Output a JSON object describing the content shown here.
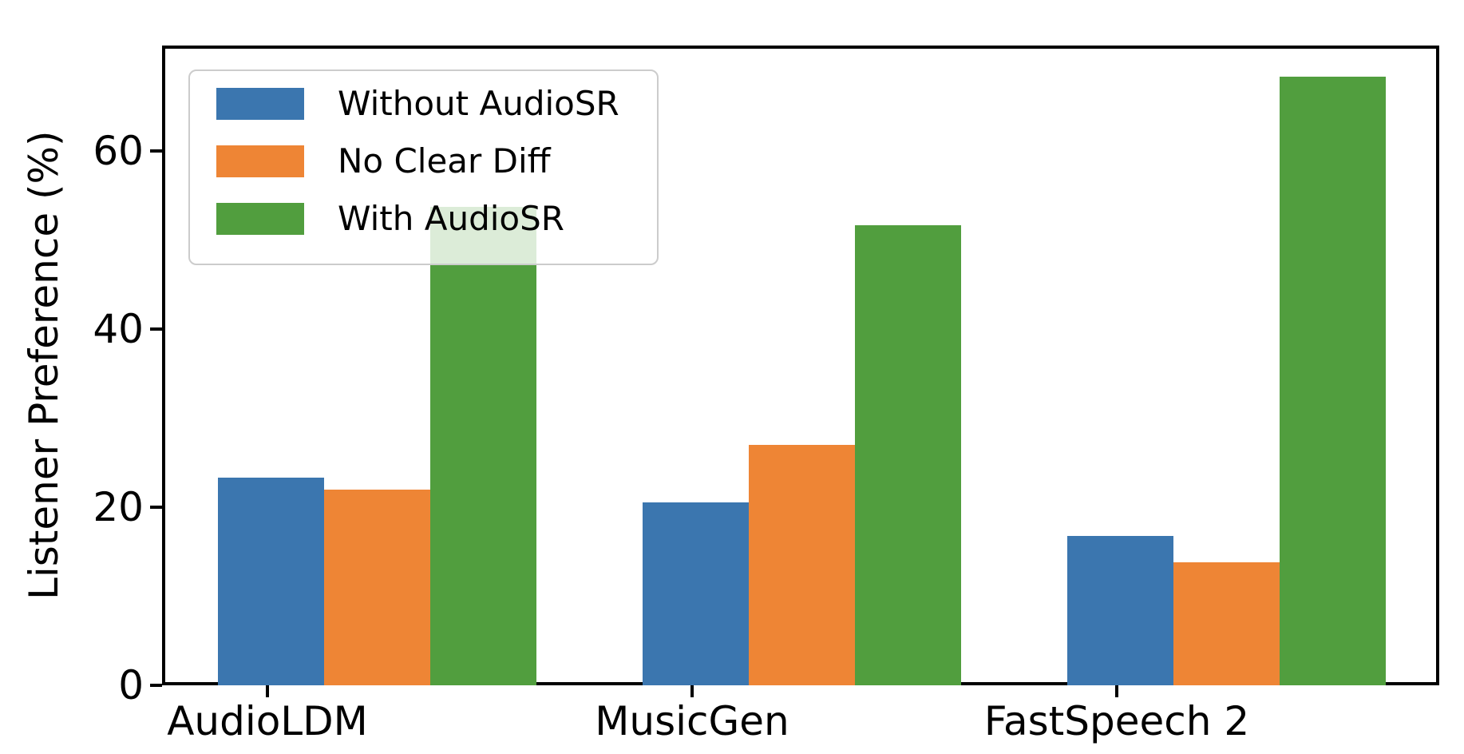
{
  "chart_data": {
    "type": "bar",
    "title": "",
    "xlabel": "",
    "ylabel": "Listener Preference (%)",
    "categories": [
      "AudioLDM",
      "MusicGen",
      "FastSpeech 2"
    ],
    "series": [
      {
        "name": "Without AudioSR",
        "color": "#3b76af",
        "values": [
          23.3,
          20.5,
          16.8
        ]
      },
      {
        "name": "No Clear Diff",
        "color": "#ee8535",
        "values": [
          22.0,
          27.0,
          13.8
        ]
      },
      {
        "name": "With AudioSR",
        "color": "#519e3e",
        "values": [
          53.7,
          51.6,
          68.3
        ]
      }
    ],
    "yticks": [
      0,
      20,
      40,
      60
    ],
    "ylim": [
      0,
      71.8
    ],
    "grid": false,
    "legend_position": "upper left",
    "legend_background": "rgba(255,255,255,0.8)",
    "axis_color": "#000000"
  }
}
